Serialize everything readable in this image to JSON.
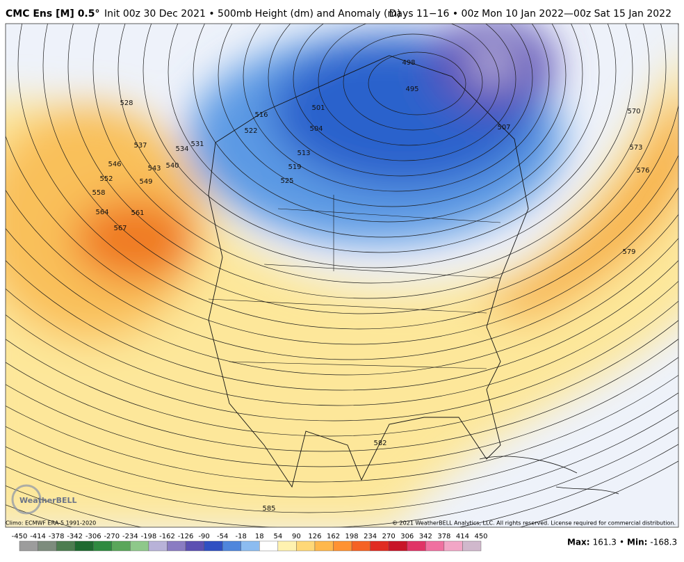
{
  "header": {
    "title": "CMC Ens [M] 0.5°",
    "subtitle": "Init 00z 30 Dec 2021 • 500mb Height (dm) and Anomaly (m)",
    "valid": "Days 11−16 • 00z Mon 10 Jan 2022—00z Sat 15 Jan 2022"
  },
  "map": {
    "contour_labels": [
      "528",
      "531",
      "534",
      "537",
      "540",
      "543",
      "546",
      "549",
      "552",
      "558",
      "561",
      "564",
      "567",
      "570",
      "573",
      "576",
      "579",
      "582",
      "585",
      "498",
      "495",
      "507",
      "501",
      "504",
      "513",
      "519",
      "525",
      "516",
      "522"
    ],
    "logo": "WeatherBELL"
  },
  "footer": {
    "climo": "Climo: ECMWF ERA-5 1991-2020",
    "copyright": "© 2021 WeatherBELL Analytics, LLC. All rights reserved. License required for commercial distribution."
  },
  "colorbar": {
    "ticks": [
      -450,
      -414,
      -378,
      -342,
      -306,
      -270,
      -234,
      -198,
      -162,
      -126,
      -90,
      -54,
      -18,
      18,
      54,
      90,
      126,
      162,
      198,
      234,
      270,
      306,
      342,
      378,
      414,
      450
    ],
    "colors": [
      "#9c9c9c",
      "#7d8c7d",
      "#4d7d50",
      "#1f6a30",
      "#2f8a40",
      "#5aa65a",
      "#8ec88a",
      "#b8b2d8",
      "#8a7cc2",
      "#5c50b2",
      "#3050c2",
      "#4f86dc",
      "#8cbcf0",
      "#ffffff",
      "#fff2b0",
      "#ffd878",
      "#ffb84c",
      "#ff9232",
      "#f56224",
      "#e02c22",
      "#c81428",
      "#e03466",
      "#f070a0",
      "#f2a6c6",
      "#d0b8cc"
    ]
  },
  "stats": {
    "max_label": "Max:",
    "max": 161.3,
    "separator": "•",
    "min_label": "Min:",
    "min": -168.3
  }
}
